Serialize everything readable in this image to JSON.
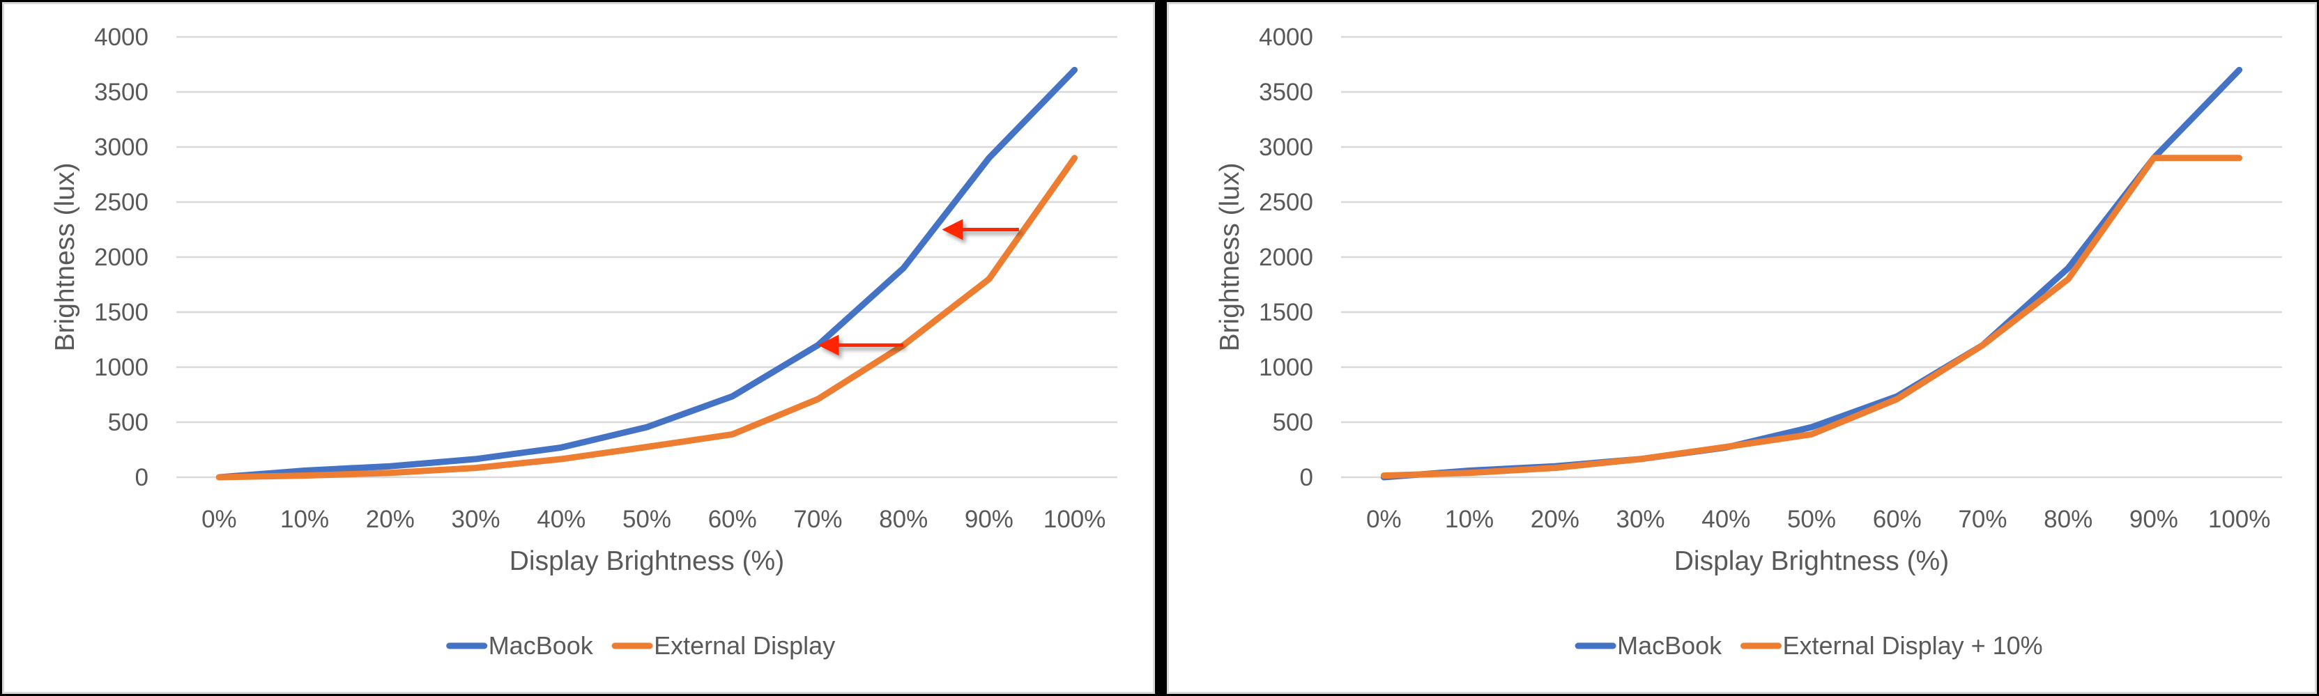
{
  "colors": {
    "macbook": "#4472C4",
    "external": "#ED7D31",
    "grid": "#D9D9D9",
    "text": "#595959",
    "arrow": "#FF2600"
  },
  "chart_data": [
    {
      "type": "line",
      "title": "",
      "xlabel": "Display Brightness (%)",
      "ylabel": "Brightness (lux)",
      "ylim": [
        0,
        4000
      ],
      "yticks": [
        0,
        500,
        1000,
        1500,
        2000,
        2500,
        3000,
        3500,
        4000
      ],
      "grid": true,
      "legend_position": "bottom",
      "categories": [
        "0%",
        "10%",
        "20%",
        "30%",
        "40%",
        "50%",
        "60%",
        "70%",
        "80%",
        "90%",
        "100%"
      ],
      "series": [
        {
          "name": "MacBook",
          "color": "#4472C4",
          "values": [
            0,
            60,
            100,
            165,
            270,
            455,
            735,
            1200,
            1900,
            2900,
            3700
          ]
        },
        {
          "name": "External Display",
          "color": "#ED7D31",
          "values": [
            0,
            15,
            40,
            85,
            165,
            275,
            390,
            710,
            1200,
            1800,
            2900
          ]
        }
      ],
      "annotations": [
        {
          "type": "arrow",
          "direction": "left",
          "color": "#FF2600",
          "from": {
            "x_index": 8,
            "y": 1200
          },
          "to": {
            "x_index": 7,
            "y": 1200
          }
        },
        {
          "type": "arrow",
          "direction": "left",
          "color": "#FF2600",
          "from": {
            "x_index": 9.35,
            "y": 2250
          },
          "to": {
            "x_index": 8.45,
            "y": 2250
          }
        }
      ]
    },
    {
      "type": "line",
      "title": "",
      "xlabel": "Display Brightness (%)",
      "ylabel": "Brightness (lux)",
      "ylim": [
        0,
        4000
      ],
      "yticks": [
        0,
        500,
        1000,
        1500,
        2000,
        2500,
        3000,
        3500,
        4000
      ],
      "grid": true,
      "legend_position": "bottom",
      "categories": [
        "0%",
        "10%",
        "20%",
        "30%",
        "40%",
        "50%",
        "60%",
        "70%",
        "80%",
        "90%",
        "100%"
      ],
      "series": [
        {
          "name": "MacBook",
          "color": "#4472C4",
          "values": [
            0,
            60,
            100,
            165,
            270,
            455,
            735,
            1200,
            1900,
            2900,
            3700
          ]
        },
        {
          "name": "External Display + 10%",
          "color": "#ED7D31",
          "values": [
            15,
            40,
            85,
            165,
            275,
            390,
            710,
            1200,
            1800,
            2900,
            2900
          ]
        }
      ],
      "annotations": []
    }
  ]
}
